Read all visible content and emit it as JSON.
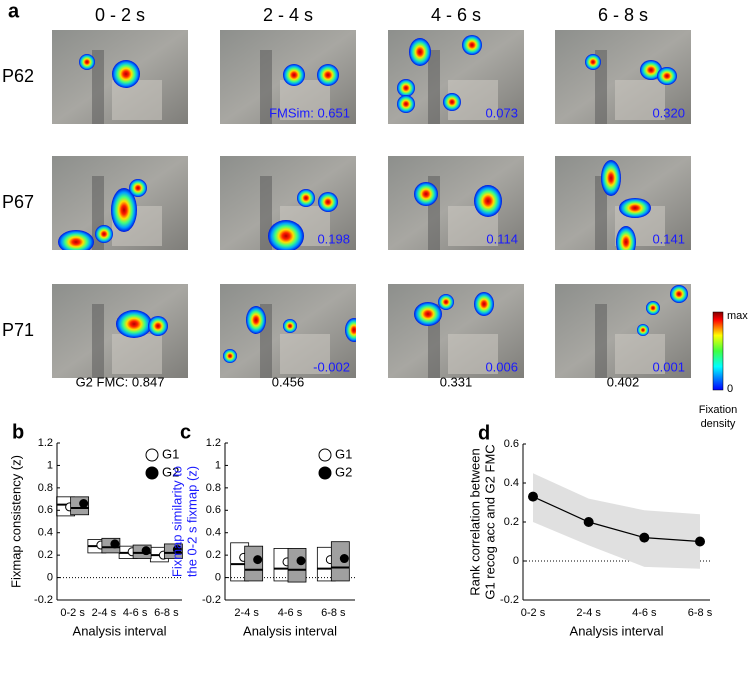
{
  "panel_a": {
    "label": "a",
    "columns": [
      "0 - 2 s",
      "2 - 4 s",
      "4 - 6 s",
      "6 - 8 s"
    ],
    "rows": [
      "P62",
      "P67",
      "P71"
    ],
    "fmsim": [
      [
        null,
        "FMSim: 0.651",
        "0.073",
        "0.320"
      ],
      [
        null,
        "0.198",
        "0.114",
        "0.141"
      ],
      [
        null,
        "-0.002",
        "0.006",
        "0.001"
      ]
    ],
    "fmc": [
      "G2 FMC: 0.847",
      "0.456",
      "0.331",
      "0.402"
    ],
    "colorbar": {
      "max": "max",
      "min": "0",
      "title": [
        "Fixation",
        "density"
      ]
    }
  },
  "chart_data": [
    {
      "type": "box",
      "label": "b",
      "ylabel": [
        "Fixmap consistency (z)"
      ],
      "xlabel": "Analysis interval",
      "categories": [
        "0-2 s",
        "2-4 s",
        "4-6 s",
        "6-8 s"
      ],
      "ylim": [
        -0.2,
        1.2
      ],
      "yticks": [
        -0.2,
        0,
        0.2,
        0.4,
        0.6,
        0.8,
        1,
        1.2
      ],
      "series": [
        {
          "name": "G1",
          "color": "#ffffff",
          "values": [
            0.63,
            0.29,
            0.23,
            0.2
          ],
          "boxes": [
            [
              0.55,
              0.65,
              0.72
            ],
            [
              0.22,
              0.28,
              0.34
            ],
            [
              0.17,
              0.22,
              0.28
            ],
            [
              0.14,
              0.2,
              0.27
            ]
          ]
        },
        {
          "name": "G2",
          "color": "#000000",
          "values": [
            0.66,
            0.3,
            0.24,
            0.25
          ],
          "boxes": [
            [
              0.56,
              0.62,
              0.72
            ],
            [
              0.22,
              0.27,
              0.35
            ],
            [
              0.17,
              0.22,
              0.29
            ],
            [
              0.17,
              0.22,
              0.3
            ]
          ]
        }
      ]
    },
    {
      "type": "box",
      "label": "c",
      "ylabel": [
        "Fixmap similarity to",
        "the 0-2 s fixmap (z)"
      ],
      "ylabel_color": "#1a1aff",
      "xlabel": "Analysis interval",
      "categories": [
        "2-4 s",
        "4-6 s",
        "6-8 s"
      ],
      "ylim": [
        -0.2,
        1.2
      ],
      "yticks": [
        -0.2,
        0,
        0.2,
        0.4,
        0.6,
        0.8,
        1,
        1.2
      ],
      "series": [
        {
          "name": "G1",
          "color": "#ffffff",
          "values": [
            0.18,
            0.14,
            0.16
          ],
          "boxes": [
            [
              -0.03,
              0.12,
              0.31
            ],
            [
              -0.03,
              0.08,
              0.26
            ],
            [
              -0.03,
              0.08,
              0.27
            ]
          ]
        },
        {
          "name": "G2",
          "color": "#000000",
          "values": [
            0.16,
            0.15,
            0.17
          ],
          "boxes": [
            [
              -0.03,
              0.07,
              0.28
            ],
            [
              -0.04,
              0.07,
              0.26
            ],
            [
              -0.03,
              0.09,
              0.32
            ]
          ]
        }
      ]
    },
    {
      "type": "line",
      "label": "d",
      "ylabel": [
        "Rank correlation between",
        "G1 recog acc and G2 FMC"
      ],
      "xlabel": "Analysis interval",
      "categories": [
        "0-2 s",
        "2-4 s",
        "4-6 s",
        "6-8 s"
      ],
      "ylim": [
        -0.2,
        0.6
      ],
      "yticks": [
        -0.2,
        0,
        0.2,
        0.4,
        0.6
      ],
      "series": [
        {
          "color": "#000000",
          "band_color": "#e0e0e0",
          "values": [
            0.33,
            0.2,
            0.12,
            0.1
          ],
          "ci_lower": [
            0.2,
            0.08,
            -0.03,
            -0.04
          ],
          "ci_upper": [
            0.45,
            0.32,
            0.26,
            0.24
          ]
        }
      ]
    }
  ]
}
